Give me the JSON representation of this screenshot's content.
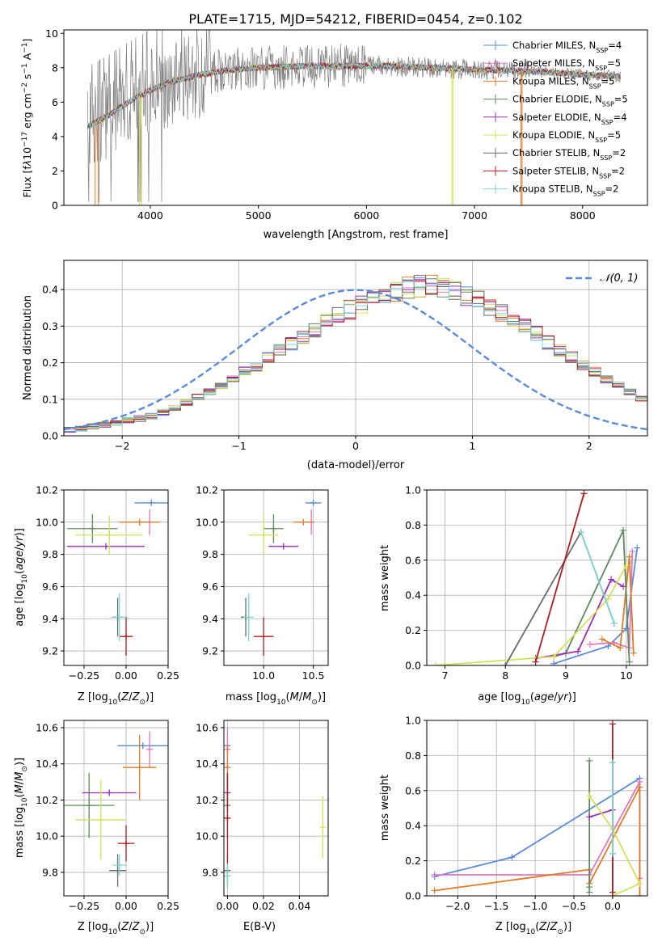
{
  "colors": {
    "chabrier_miles": "#5b8bd6",
    "salpeter_miles": "#e377c2",
    "kroupa_miles": "#e07b27",
    "chabrier_elodie": "#5f8a5f",
    "salpeter_elodie": "#9b30b5",
    "kroupa_elodie": "#d4e157",
    "chabrier_stelib": "#6a6a6a",
    "salpeter_stelib": "#b01c1c",
    "kroupa_stelib": "#7fd6d6",
    "normal_curve": "#5b8bd6",
    "grid": "#b0b0b0"
  },
  "chart_data": [
    {
      "id": "spectrum",
      "type": "line",
      "title": "PLATE=1715, MJD=54212, FIBERID=0454, z=0.102",
      "xlabel": "wavelength [Angstrom, rest frame]",
      "ylabel": "Flux [f$_\\lambda$10$^{-17}$ erg cm$^{-2}$ s$^{-1}$ A$^{-1}$]",
      "xlim": [
        3200,
        8600
      ],
      "ylim": [
        0,
        10.2
      ],
      "xticks": [
        "4000",
        "5000",
        "6000",
        "7000",
        "8000"
      ],
      "xtick_values": [
        4000,
        5000,
        6000,
        7000,
        8000
      ],
      "yticks": [
        "0",
        "2",
        "4",
        "6",
        "8",
        "10"
      ],
      "ytick_values": [
        0,
        2,
        4,
        6,
        8,
        10
      ],
      "grid": false,
      "legend_position": "right",
      "legend": [
        {
          "key": "chabrier_miles",
          "label": "Chabrier MILES, N",
          "sub": "SSP",
          "tail": "=4"
        },
        {
          "key": "salpeter_miles",
          "label": "Salpeter MILES, N",
          "sub": "SSP",
          "tail": "=5"
        },
        {
          "key": "kroupa_miles",
          "label": "Kroupa MILES, N",
          "sub": "SSP",
          "tail": "=5"
        },
        {
          "key": "chabrier_elodie",
          "label": "Chabrier ELODIE, N",
          "sub": "SSP",
          "tail": "=5"
        },
        {
          "key": "salpeter_elodie",
          "label": "Salpeter ELODIE, N",
          "sub": "SSP",
          "tail": "=4"
        },
        {
          "key": "kroupa_elodie",
          "label": "Kroupa ELODIE, N",
          "sub": "SSP",
          "tail": "=5"
        },
        {
          "key": "chabrier_stelib",
          "label": "Chabrier STELIB, N",
          "sub": "SSP",
          "tail": "=2"
        },
        {
          "key": "salpeter_stelib",
          "label": "Salpeter STELIB, N",
          "sub": "SSP",
          "tail": "=2"
        },
        {
          "key": "kroupa_stelib",
          "label": "Kroupa STELIB, N",
          "sub": "SSP",
          "tail": "=2"
        }
      ],
      "continuum": [
        [
          3420,
          4.6
        ],
        [
          3550,
          5.0
        ],
        [
          3700,
          5.6
        ],
        [
          3850,
          6.2
        ],
        [
          4000,
          6.7
        ],
        [
          4200,
          7.2
        ],
        [
          4400,
          7.5
        ],
        [
          4600,
          7.75
        ],
        [
          4800,
          7.9
        ],
        [
          5000,
          8.0
        ],
        [
          5200,
          8.05
        ],
        [
          5400,
          8.1
        ],
        [
          5600,
          8.1
        ],
        [
          5800,
          8.1
        ],
        [
          6000,
          8.1
        ],
        [
          6200,
          8.1
        ],
        [
          6400,
          8.05
        ],
        [
          6600,
          8.0
        ],
        [
          6800,
          7.95
        ],
        [
          7000,
          7.9
        ],
        [
          7200,
          7.85
        ],
        [
          7400,
          7.8
        ],
        [
          7600,
          7.75
        ],
        [
          7800,
          7.7
        ],
        [
          8000,
          7.6
        ],
        [
          8200,
          7.55
        ],
        [
          8350,
          7.5
        ]
      ],
      "dropouts": [
        {
          "key": "kroupa_miles",
          "x": [
            3490,
            3520
          ]
        },
        {
          "key": "kroupa_elodie",
          "x": [
            3900,
            3920
          ]
        },
        {
          "key": "kroupa_elodie",
          "x": [
            6790,
            6800
          ]
        },
        {
          "key": "kroupa_miles",
          "x": [
            7430,
            7440
          ]
        }
      ]
    },
    {
      "id": "residuals",
      "type": "histogram",
      "xlabel": "(data-model)/error",
      "ylabel": "Normed distribution",
      "xlim": [
        -2.5,
        2.5
      ],
      "ylim": [
        0,
        0.48
      ],
      "xticks": [
        "−2",
        "−1",
        "0",
        "1",
        "2"
      ],
      "xtick_values": [
        -2,
        -1,
        0,
        1,
        2
      ],
      "yticks": [
        "0.0",
        "0.1",
        "0.2",
        "0.3",
        "0.4"
      ],
      "ytick_values": [
        0,
        0.1,
        0.2,
        0.3,
        0.4
      ],
      "grid": true,
      "legend_position": "top-right",
      "legend_label": "𝒩(0, 1)",
      "bin_width": 0.1,
      "bin_start": -2.5,
      "mean_density": [
        0.018,
        0.02,
        0.025,
        0.03,
        0.035,
        0.04,
        0.047,
        0.054,
        0.065,
        0.075,
        0.09,
        0.105,
        0.12,
        0.135,
        0.155,
        0.175,
        0.19,
        0.215,
        0.235,
        0.25,
        0.27,
        0.29,
        0.31,
        0.33,
        0.345,
        0.36,
        0.37,
        0.38,
        0.395,
        0.405,
        0.41,
        0.41,
        0.405,
        0.395,
        0.385,
        0.37,
        0.355,
        0.335,
        0.315,
        0.3,
        0.28,
        0.255,
        0.235,
        0.215,
        0.195,
        0.175,
        0.155,
        0.14,
        0.12,
        0.1,
        0.085,
        0.075,
        0.065,
        0.055,
        0.048,
        0.042,
        0.037,
        0.032,
        0.028,
        0.024
      ],
      "model_order": [
        "chabrier_miles",
        "salpeter_miles",
        "kroupa_miles",
        "chabrier_elodie",
        "salpeter_elodie",
        "kroupa_elodie",
        "chabrier_stelib",
        "salpeter_stelib",
        "kroupa_stelib"
      ]
    },
    {
      "id": "age_vs_Z",
      "type": "errorbar",
      "xlabel": "Z [log10(Z/Z⊙)]",
      "ylabel": "age  [log10(age/yr)]",
      "xlim": [
        -0.37,
        0.25
      ],
      "ylim": [
        9.11,
        10.2
      ],
      "xticks": [
        "−0.25",
        "0.00",
        "0.25"
      ],
      "xtick_values": [
        -0.25,
        0,
        0.25
      ],
      "yticks": [
        "9.2",
        "9.4",
        "9.6",
        "9.8",
        "10.0",
        "10.2"
      ],
      "ytick_values": [
        9.2,
        9.4,
        9.6,
        9.8,
        10.0,
        10.2
      ],
      "grid": true,
      "points": [
        {
          "key": "chabrier_miles",
          "x": 0.15,
          "y": 10.12,
          "xerr": 0.1,
          "yerr": 0.0
        },
        {
          "key": "salpeter_miles",
          "x": 0.14,
          "y": 10.0,
          "xerr": 0.01,
          "yerr": 0.08
        },
        {
          "key": "kroupa_miles",
          "x": 0.08,
          "y": 10.0,
          "xerr": 0.12,
          "yerr": 0.0
        },
        {
          "key": "chabrier_elodie",
          "x": -0.2,
          "y": 9.96,
          "xerr": 0.15,
          "yerr": 0.09
        },
        {
          "key": "salpeter_elodie",
          "x": -0.12,
          "y": 9.85,
          "xerr": 0.23,
          "yerr": 0.0
        },
        {
          "key": "kroupa_elodie",
          "x": -0.1,
          "y": 9.92,
          "xerr": 0.2,
          "yerr": 0.12
        },
        {
          "key": "chabrier_stelib",
          "x": -0.05,
          "y": 9.41,
          "xerr": 0.03,
          "yerr": 0.12
        },
        {
          "key": "salpeter_stelib",
          "x": -0.0,
          "y": 9.29,
          "xerr": 0.04,
          "yerr": 0.12
        },
        {
          "key": "kroupa_stelib",
          "x": -0.04,
          "y": 9.41,
          "xerr": 0.05,
          "yerr": 0.15
        }
      ]
    },
    {
      "id": "age_vs_mass",
      "type": "errorbar",
      "xlabel": "mass [log10(M/M⊙)]",
      "xlim": [
        9.6,
        10.65
      ],
      "ylim": [
        9.11,
        10.2
      ],
      "xticks": [
        "10.0",
        "10.5"
      ],
      "xtick_values": [
        10.0,
        10.5
      ],
      "yticks": [
        "9.2",
        "9.4",
        "9.6",
        "9.8",
        "10.0",
        "10.2"
      ],
      "ytick_values": [
        9.2,
        9.4,
        9.6,
        9.8,
        10.0,
        10.2
      ],
      "grid": true,
      "points": [
        {
          "key": "chabrier_miles",
          "x": 10.5,
          "y": 10.12,
          "xerr": 0.08,
          "yerr": 0.0
        },
        {
          "key": "salpeter_miles",
          "x": 10.48,
          "y": 10.0,
          "xerr": 0.03,
          "yerr": 0.08
        },
        {
          "key": "kroupa_miles",
          "x": 10.4,
          "y": 10.0,
          "xerr": 0.1,
          "yerr": 0.0
        },
        {
          "key": "chabrier_elodie",
          "x": 10.1,
          "y": 9.96,
          "xerr": 0.1,
          "yerr": 0.09
        },
        {
          "key": "salpeter_elodie",
          "x": 10.2,
          "y": 9.85,
          "xerr": 0.15,
          "yerr": 0.0
        },
        {
          "key": "kroupa_elodie",
          "x": 10.0,
          "y": 9.92,
          "xerr": 0.15,
          "yerr": 0.12
        },
        {
          "key": "chabrier_stelib",
          "x": 9.82,
          "y": 9.41,
          "xerr": 0.05,
          "yerr": 0.12
        },
        {
          "key": "salpeter_stelib",
          "x": 10.0,
          "y": 9.29,
          "xerr": 0.1,
          "yerr": 0.12
        },
        {
          "key": "kroupa_stelib",
          "x": 9.85,
          "y": 9.41,
          "xerr": 0.05,
          "yerr": 0.15
        }
      ]
    },
    {
      "id": "weight_vs_age",
      "type": "line",
      "xlabel": "age  [log10(age/yr)]",
      "ylabel": "mass weight",
      "xlim": [
        6.7,
        10.35
      ],
      "ylim": [
        0,
        1.0
      ],
      "xticks": [
        "7",
        "8",
        "9",
        "10"
      ],
      "xtick_values": [
        7,
        8,
        9,
        10
      ],
      "yticks": [
        "0.0",
        "0.2",
        "0.4",
        "0.6",
        "0.8",
        "1.0"
      ],
      "ytick_values": [
        0,
        0.2,
        0.4,
        0.6,
        0.8,
        1.0
      ],
      "grid": true,
      "series": [
        {
          "key": "chabrier_miles",
          "x": [
            8.8,
            9.7,
            10.0,
            10.18
          ],
          "y": [
            0.01,
            0.11,
            0.21,
            0.67
          ]
        },
        {
          "key": "salpeter_miles",
          "x": [
            9.4,
            9.8,
            10.05,
            10.1
          ],
          "y": [
            0.12,
            0.13,
            0.1,
            0.65
          ]
        },
        {
          "key": "kroupa_miles",
          "x": [
            9.6,
            9.9,
            10.05,
            10.12
          ],
          "y": [
            0.15,
            0.1,
            0.62,
            0.07
          ]
        },
        {
          "key": "chabrier_elodie",
          "x": [
            8.8,
            9.0,
            9.95,
            10.05
          ],
          "y": [
            0.05,
            0.07,
            0.77,
            0.02
          ]
        },
        {
          "key": "salpeter_elodie",
          "x": [
            8.5,
            9.2,
            9.75,
            9.95
          ],
          "y": [
            0.04,
            0.08,
            0.49,
            0.45
          ]
        },
        {
          "key": "kroupa_elodie",
          "x": [
            6.85,
            8.8,
            9.7,
            10.0
          ],
          "y": [
            0.0,
            0.05,
            0.38,
            0.57
          ]
        },
        {
          "key": "chabrier_stelib",
          "x": [
            8.0,
            9.25,
            9.8
          ],
          "y": [
            0.0,
            0.76,
            0.24
          ]
        },
        {
          "key": "salpeter_stelib",
          "x": [
            8.5,
            9.3
          ],
          "y": [
            0.02,
            0.98
          ]
        },
        {
          "key": "kroupa_stelib",
          "x": [
            9.25,
            9.8
          ],
          "y": [
            0.76,
            0.24
          ]
        }
      ]
    },
    {
      "id": "mass_vs_Z",
      "type": "errorbar",
      "xlabel": "Z [log10(Z/Z⊙)]",
      "ylabel": "mass [log10(M/M⊙)]",
      "xlim": [
        -0.37,
        0.25
      ],
      "ylim": [
        9.67,
        10.64
      ],
      "xticks": [
        "−0.25",
        "0.00",
        "0.25"
      ],
      "xtick_values": [
        -0.25,
        0,
        0.25
      ],
      "yticks": [
        "9.8",
        "10.0",
        "10.2",
        "10.4",
        "10.6"
      ],
      "ytick_values": [
        9.8,
        10.0,
        10.2,
        10.4,
        10.6
      ],
      "grid": true,
      "points": [
        {
          "key": "chabrier_miles",
          "x": 0.1,
          "y": 10.5,
          "xerr": 0.15,
          "yerr": 0.0
        },
        {
          "key": "salpeter_miles",
          "x": 0.14,
          "y": 10.48,
          "xerr": 0.01,
          "yerr": 0.1
        },
        {
          "key": "kroupa_miles",
          "x": 0.08,
          "y": 10.38,
          "xerr": 0.1,
          "yerr": 0.18
        },
        {
          "key": "chabrier_elodie",
          "x": -0.22,
          "y": 10.17,
          "xerr": 0.15,
          "yerr": 0.18
        },
        {
          "key": "salpeter_elodie",
          "x": -0.1,
          "y": 10.24,
          "xerr": 0.16,
          "yerr": 0.0
        },
        {
          "key": "kroupa_elodie",
          "x": -0.15,
          "y": 10.09,
          "xerr": 0.15,
          "yerr": 0.22
        },
        {
          "key": "chabrier_stelib",
          "x": -0.05,
          "y": 9.81,
          "xerr": 0.05,
          "yerr": 0.09
        },
        {
          "key": "salpeter_stelib",
          "x": -0.0,
          "y": 9.96,
          "xerr": 0.05,
          "yerr": 0.1
        },
        {
          "key": "kroupa_stelib",
          "x": -0.04,
          "y": 9.84,
          "xerr": 0.04,
          "yerr": 0.06
        }
      ]
    },
    {
      "id": "mass_vs_ebv",
      "type": "errorbar",
      "xlabel": "E(B-V)",
      "xlim": [
        -0.002,
        0.056
      ],
      "ylim": [
        9.67,
        10.64
      ],
      "xticks": [
        "0.00",
        "0.02",
        "0.04"
      ],
      "xtick_values": [
        0,
        0.02,
        0.04
      ],
      "yticks": [
        "9.8",
        "10.0",
        "10.2",
        "10.4",
        "10.6"
      ],
      "ytick_values": [
        9.8,
        10.0,
        10.2,
        10.4,
        10.6
      ],
      "grid": true,
      "points": [
        {
          "key": "chabrier_miles",
          "x": 0.0,
          "y": 10.5,
          "xerr": 0.0,
          "yerr": 0.05
        },
        {
          "key": "salpeter_miles",
          "x": 0.0,
          "y": 10.48,
          "xerr": 0.0,
          "yerr": 0.12
        },
        {
          "key": "kroupa_miles",
          "x": 0.0,
          "y": 10.38,
          "xerr": 0.0,
          "yerr": 0.12
        },
        {
          "key": "chabrier_elodie",
          "x": 0.0,
          "y": 10.17,
          "xerr": 0.0,
          "yerr": 0.18
        },
        {
          "key": "salpeter_elodie",
          "x": 0.0,
          "y": 10.24,
          "xerr": 0.0,
          "yerr": 0.1
        },
        {
          "key": "kroupa_elodie",
          "x": 0.053,
          "y": 10.05,
          "xerr": 0.0,
          "yerr": 0.17
        },
        {
          "key": "chabrier_stelib",
          "x": 0.0,
          "y": 9.81,
          "xerr": 0.0,
          "yerr": 0.09
        },
        {
          "key": "salpeter_stelib",
          "x": 0.0,
          "y": 10.1,
          "xerr": 0.0,
          "yerr": 0.25
        },
        {
          "key": "kroupa_stelib",
          "x": 0.0,
          "y": 9.78,
          "xerr": 0.0,
          "yerr": 0.07
        }
      ]
    },
    {
      "id": "weight_vs_Z",
      "type": "line",
      "xlabel": "Z [log10(Z/Z⊙)]",
      "ylabel": "mass weight",
      "xlim": [
        -2.4,
        0.45
      ],
      "ylim": [
        0,
        1.0
      ],
      "xticks": [
        "−2.0",
        "−1.5",
        "−1.0",
        "−0.5",
        "0.0"
      ],
      "xtick_values": [
        -2.0,
        -1.5,
        -1.0,
        -0.5,
        0.0
      ],
      "yticks": [
        "0.0",
        "0.2",
        "0.4",
        "0.6",
        "0.8",
        "1.0"
      ],
      "ytick_values": [
        0,
        0.2,
        0.4,
        0.6,
        0.8,
        1.0
      ],
      "grid": true,
      "series": [
        {
          "key": "chabrier_miles",
          "x": [
            -2.3,
            -1.3,
            0.35,
            0.35
          ],
          "y": [
            0.11,
            0.22,
            0.67,
            0.0
          ]
        },
        {
          "key": "salpeter_miles",
          "x": [
            -2.3,
            -0.3,
            0.35,
            0.35
          ],
          "y": [
            0.12,
            0.12,
            0.65,
            0.1
          ]
        },
        {
          "key": "kroupa_miles",
          "x": [
            -2.3,
            -0.3,
            -0.3,
            0.35,
            0.35
          ],
          "y": [
            0.03,
            0.15,
            0.07,
            0.62,
            0.0
          ]
        },
        {
          "key": "chabrier_elodie",
          "x": [
            -0.3,
            -0.3,
            -0.3
          ],
          "y": [
            0.02,
            0.77,
            0.05
          ]
        },
        {
          "key": "salpeter_elodie",
          "x": [
            -0.3,
            0.0,
            0.0
          ],
          "y": [
            0.45,
            0.49,
            0.0
          ]
        },
        {
          "key": "kroupa_elodie",
          "x": [
            -0.3,
            0.0,
            0.35,
            0.0
          ],
          "y": [
            0.57,
            0.38,
            0.07,
            0.0
          ]
        },
        {
          "key": "chabrier_stelib",
          "x": [
            0.0,
            0.0
          ],
          "y": [
            0.76,
            0.24
          ]
        },
        {
          "key": "salpeter_stelib",
          "x": [
            0.0,
            0.0
          ],
          "y": [
            0.98,
            0.02
          ]
        },
        {
          "key": "kroupa_stelib",
          "x": [
            0.0,
            0.0
          ],
          "y": [
            0.76,
            0.24
          ]
        }
      ]
    }
  ]
}
